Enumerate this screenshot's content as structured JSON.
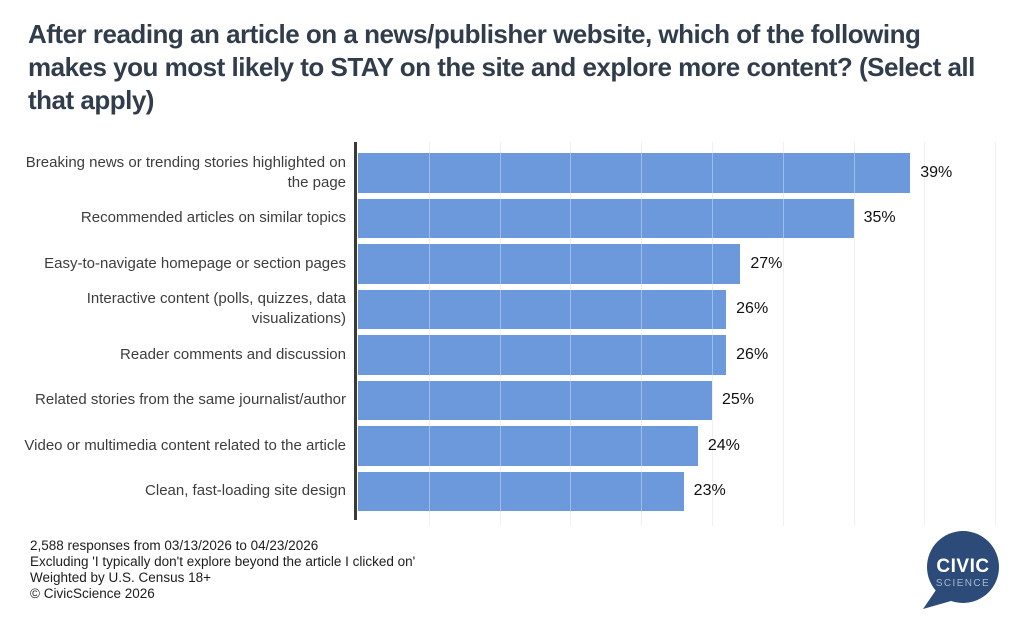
{
  "title": "After reading an article on a news/publisher website, which of the following makes you most likely to STAY on the site and explore more content? (Select all that apply)",
  "chart_data": {
    "type": "bar",
    "orientation": "horizontal",
    "title": "After reading an article on a news/publisher website, which of the following makes you most likely to STAY on the site and explore more content? (Select all that apply)",
    "categories": [
      "Breaking news or trending stories highlighted on the page",
      "Recommended articles on similar topics",
      "Easy-to-navigate homepage or section pages",
      "Interactive content (polls, quizzes, data visualizations)",
      "Reader comments and discussion",
      "Related stories from the same journalist/author",
      "Video or multimedia content related to the article",
      "Clean, fast-loading site design"
    ],
    "values": [
      39,
      35,
      27,
      26,
      26,
      25,
      24,
      23
    ],
    "value_labels": [
      "39%",
      "35%",
      "27%",
      "26%",
      "26%",
      "25%",
      "24%",
      "23%"
    ],
    "unit": "percent",
    "xlim": [
      0,
      46
    ],
    "grid": "vertical",
    "grid_step": 5,
    "legend": "none",
    "bar_color": "#6C99DC",
    "axis_color": "#3a3a3a",
    "label_color": "#3d3d3d",
    "value_color": "#111111"
  },
  "footer": {
    "lines": [
      "2,588 responses from 03/13/2026 to 04/23/2026",
      "Excluding 'I typically don't explore beyond the article I clicked on'",
      "Weighted by U.S. Census 18+",
      "© CivicScience 2026"
    ]
  },
  "logo": {
    "line1": "CIVIC",
    "line2": "SCIENCE",
    "bubble_color": "#2C4B79",
    "line1_color": "#FFFFFF",
    "line2_color": "#A9B8CC"
  }
}
